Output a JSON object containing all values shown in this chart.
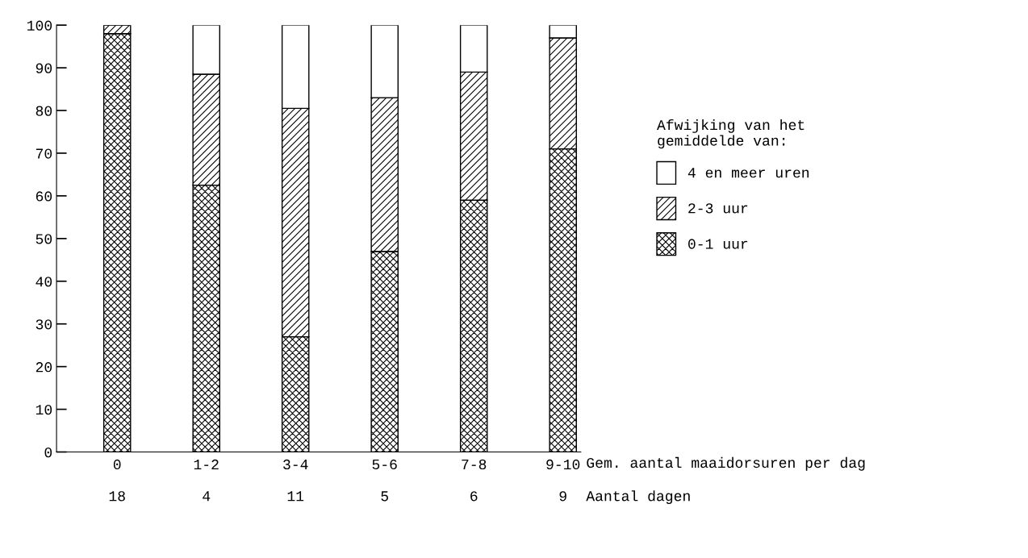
{
  "chart_data": {
    "type": "bar",
    "stacked": true,
    "xlabel": "Gem. aantal maaidorsuren per dag",
    "legend_title": "Afwijking van het\ngemiddelde van:",
    "categories": [
      "0",
      "1-2",
      "3-4",
      "5-6",
      "7-8",
      "9-10"
    ],
    "series": [
      {
        "name": "0-1 uur",
        "color": "#000000",
        "values": [
          98,
          62.5,
          27,
          47,
          59,
          71
        ]
      },
      {
        "name": "2-3 uur",
        "color": "#000000",
        "values": [
          2,
          26,
          53.5,
          36,
          30,
          26
        ]
      },
      {
        "name": "4 en meer uren",
        "color": "#000000",
        "values": [
          0,
          11.5,
          19.5,
          17,
          11,
          3
        ]
      }
    ],
    "ylim": [
      0,
      100
    ],
    "yticks": [
      0,
      10,
      20,
      30,
      40,
      50,
      60,
      70,
      80,
      90,
      100
    ],
    "grid": false,
    "legend": "right",
    "annotations": [
      "Aantal dagen",
      "18",
      "4",
      "11",
      "5",
      "6",
      "9"
    ]
  }
}
